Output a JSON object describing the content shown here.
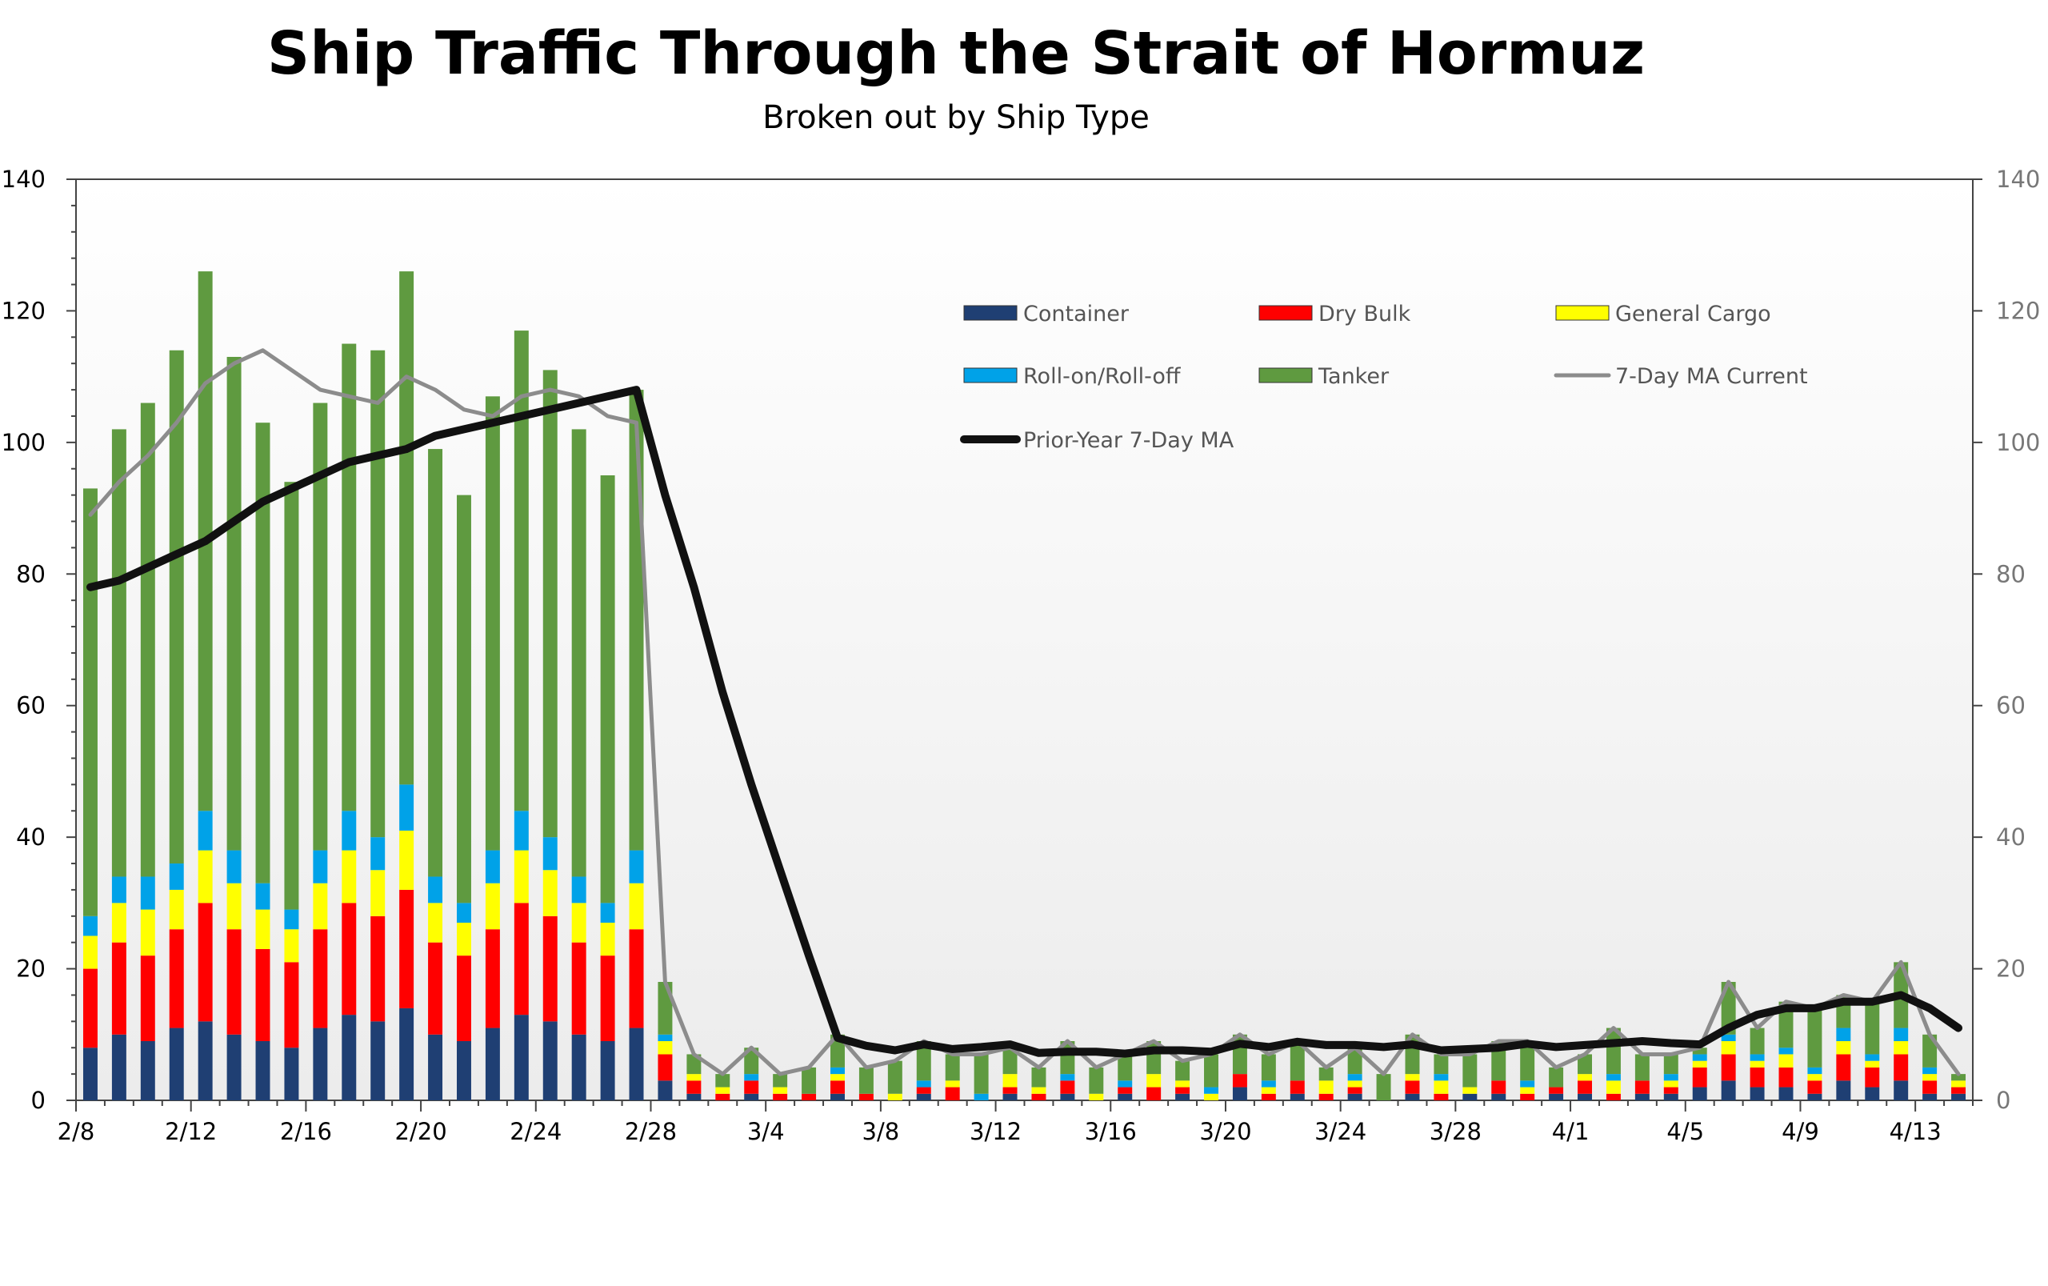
{
  "chart_data": {
    "type": "bar",
    "stacked": true,
    "title": "Ship Traffic Through the Strait of Hormuz",
    "subtitle": "Broken out by Ship Type",
    "xlabel": "",
    "ylabel": "",
    "ylim": [
      0,
      140
    ],
    "yticks": [
      0,
      20,
      40,
      60,
      80,
      100,
      120,
      140
    ],
    "secondary_ylim": [
      0,
      140
    ],
    "grid": false,
    "legend_placement": "top-right",
    "x_tick_labels": [
      "2/8",
      "2/12",
      "2/16",
      "2/20",
      "2/24",
      "2/28",
      "3/4",
      "3/8",
      "3/12",
      "3/16",
      "3/20",
      "3/24",
      "3/28",
      "4/1",
      "4/5",
      "4/9",
      "4/13"
    ],
    "categories": [
      "2/8",
      "2/9",
      "2/10",
      "2/11",
      "2/12",
      "2/13",
      "2/14",
      "2/15",
      "2/16",
      "2/17",
      "2/18",
      "2/19",
      "2/20",
      "2/21",
      "2/22",
      "2/23",
      "2/24",
      "2/25",
      "2/26",
      "2/27",
      "2/28",
      "3/1",
      "3/2",
      "3/3",
      "3/4",
      "3/5",
      "3/6",
      "3/7",
      "3/8",
      "3/9",
      "3/10",
      "3/11",
      "3/12",
      "3/13",
      "3/14",
      "3/15",
      "3/16",
      "3/17",
      "3/18",
      "3/19",
      "3/20",
      "3/21",
      "3/22",
      "3/23",
      "3/24",
      "3/25",
      "3/26",
      "3/27",
      "3/28",
      "3/29",
      "3/30",
      "3/31",
      "4/1",
      "4/2",
      "4/3",
      "4/4",
      "4/5",
      "4/6",
      "4/7",
      "4/8",
      "4/9",
      "4/10",
      "4/11",
      "4/12",
      "4/13",
      "4/14"
    ],
    "series": [
      {
        "name": "Container",
        "kind": "bar",
        "color": "#1f3f73",
        "values": [
          8,
          10,
          9,
          11,
          12,
          10,
          9,
          8,
          11,
          13,
          12,
          14,
          10,
          9,
          11,
          13,
          12,
          10,
          9,
          11,
          3,
          1,
          0,
          1,
          0,
          0,
          1,
          0,
          0,
          1,
          0,
          0,
          1,
          0,
          1,
          0,
          1,
          0,
          1,
          0,
          2,
          0,
          1,
          0,
          1,
          0,
          1,
          0,
          1,
          1,
          0,
          1,
          1,
          0,
          1,
          1,
          2,
          3,
          2,
          2,
          1,
          3,
          2,
          3,
          1,
          1
        ]
      },
      {
        "name": "Dry Bulk",
        "kind": "bar",
        "color": "#ff0000",
        "values": [
          12,
          14,
          13,
          15,
          18,
          16,
          14,
          13,
          15,
          17,
          16,
          18,
          14,
          13,
          15,
          17,
          16,
          14,
          13,
          15,
          4,
          2,
          1,
          2,
          1,
          1,
          2,
          1,
          0,
          1,
          2,
          0,
          1,
          1,
          2,
          0,
          1,
          2,
          1,
          0,
          2,
          1,
          2,
          1,
          1,
          0,
          2,
          1,
          0,
          2,
          1,
          1,
          2,
          1,
          2,
          1,
          3,
          4,
          3,
          3,
          2,
          4,
          3,
          4,
          2,
          1
        ]
      },
      {
        "name": "General Cargo",
        "kind": "bar",
        "color": "#ffff00",
        "values": [
          5,
          6,
          7,
          6,
          8,
          7,
          6,
          5,
          7,
          8,
          7,
          9,
          6,
          5,
          7,
          8,
          7,
          6,
          5,
          7,
          2,
          1,
          1,
          0,
          1,
          0,
          1,
          0,
          1,
          0,
          1,
          0,
          2,
          1,
          0,
          1,
          0,
          2,
          1,
          1,
          0,
          1,
          0,
          2,
          1,
          0,
          1,
          2,
          1,
          0,
          1,
          0,
          1,
          2,
          0,
          1,
          1,
          2,
          1,
          2,
          1,
          2,
          1,
          2,
          1,
          1
        ]
      },
      {
        "name": "Roll-on/Roll-off",
        "kind": "bar",
        "color": "#00a2e8",
        "values": [
          3,
          4,
          5,
          4,
          6,
          5,
          4,
          3,
          5,
          6,
          5,
          7,
          4,
          3,
          5,
          6,
          5,
          4,
          3,
          5,
          1,
          0,
          0,
          1,
          0,
          0,
          1,
          0,
          0,
          1,
          0,
          1,
          0,
          0,
          1,
          0,
          1,
          0,
          0,
          1,
          0,
          1,
          0,
          0,
          1,
          0,
          0,
          1,
          0,
          0,
          1,
          0,
          0,
          1,
          0,
          1,
          1,
          1,
          1,
          1,
          1,
          2,
          1,
          2,
          1,
          0
        ]
      },
      {
        "name": "Tanker",
        "kind": "bar",
        "color": "#5f9a40",
        "values": [
          65,
          68,
          72,
          78,
          82,
          75,
          70,
          65,
          68,
          71,
          74,
          78,
          65,
          62,
          69,
          73,
          71,
          68,
          65,
          70,
          8,
          3,
          2,
          4,
          2,
          4,
          5,
          4,
          5,
          6,
          4,
          6,
          4,
          3,
          5,
          4,
          4,
          5,
          3,
          5,
          6,
          4,
          6,
          2,
          4,
          4,
          6,
          3,
          5,
          6,
          5,
          3,
          3,
          7,
          4,
          3,
          1,
          8,
          4,
          7,
          9,
          5,
          8,
          10,
          5,
          1
        ]
      },
      {
        "name": "7-Day MA Current",
        "kind": "line",
        "color": "#8c8c8c",
        "values": [
          89,
          94,
          98,
          103,
          109,
          112,
          114,
          111,
          108,
          107,
          106,
          110,
          108,
          105,
          104,
          107,
          108,
          107,
          104,
          103,
          18,
          7,
          4,
          8,
          4,
          5,
          10,
          5,
          6,
          9,
          7,
          7,
          8,
          5,
          9,
          5,
          7,
          9,
          6,
          7,
          10,
          7,
          9,
          5,
          8,
          4,
          10,
          7,
          7,
          9,
          9,
          5,
          7,
          11,
          7,
          7,
          8,
          18,
          11,
          15,
          14,
          16,
          15,
          21,
          10,
          4
        ]
      },
      {
        "name": "Prior-Year 7-Day MA",
        "kind": "line",
        "color": "#111111",
        "values": [
          78,
          79,
          81,
          83,
          85,
          88,
          91,
          93,
          95,
          97,
          98,
          99,
          101,
          102,
          103,
          104,
          105,
          106,
          107,
          108,
          92,
          78,
          62,
          48,
          35,
          22,
          9.5,
          8.3,
          7.6,
          8.5,
          7.8,
          8.1,
          8.5,
          7.2,
          7.4,
          7.4,
          7.1,
          7.6,
          7.6,
          7.4,
          8.6,
          8.1,
          8.9,
          8.4,
          8.4,
          8.1,
          8.5,
          7.6,
          7.8,
          8.0,
          8.6,
          8.1,
          8.4,
          8.7,
          9.0,
          8.7,
          8.5,
          11,
          13,
          14,
          14,
          15,
          15,
          16,
          14,
          11
        ]
      }
    ]
  }
}
